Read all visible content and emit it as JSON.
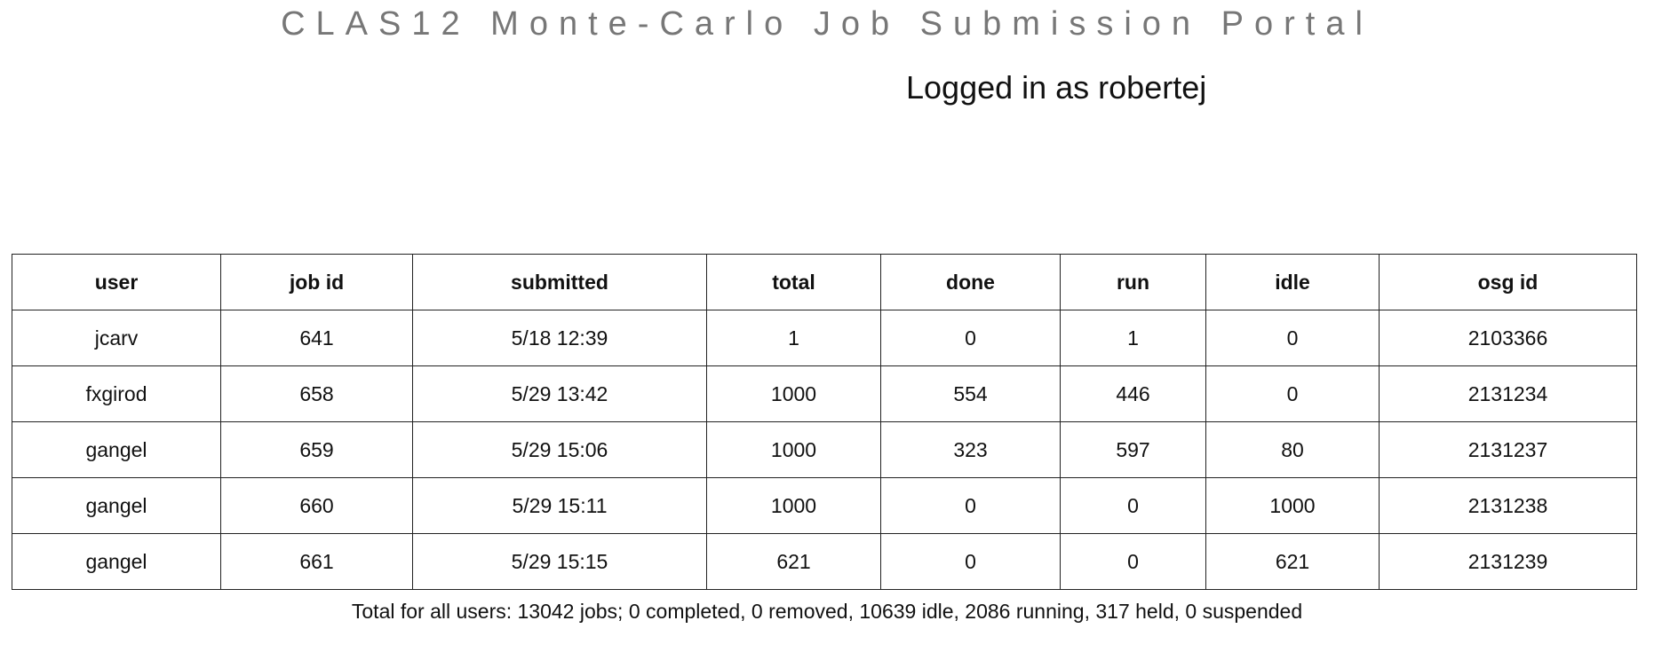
{
  "header": {
    "title": "CLAS12 Monte-Carlo Job Submission Portal",
    "login_status": "Logged in as robertej"
  },
  "jobs_table": {
    "columns": [
      "user",
      "job id",
      "submitted",
      "total",
      "done",
      "run",
      "idle",
      "osg id"
    ],
    "rows": [
      [
        "jcarv",
        "641",
        "5/18 12:39",
        "1",
        "0",
        "1",
        "0",
        "2103366"
      ],
      [
        "fxgirod",
        "658",
        "5/29 13:42",
        "1000",
        "554",
        "446",
        "0",
        "2131234"
      ],
      [
        "gangel",
        "659",
        "5/29 15:06",
        "1000",
        "323",
        "597",
        "80",
        "2131237"
      ],
      [
        "gangel",
        "660",
        "5/29 15:11",
        "1000",
        "0",
        "0",
        "1000",
        "2131238"
      ],
      [
        "gangel",
        "661",
        "5/29 15:15",
        "621",
        "0",
        "0",
        "621",
        "2131239"
      ]
    ]
  },
  "summary": {
    "text": "Total for all users: 13042 jobs; 0 completed, 0 removed, 10639 idle, 2086 running, 317 held, 0 suspended"
  }
}
